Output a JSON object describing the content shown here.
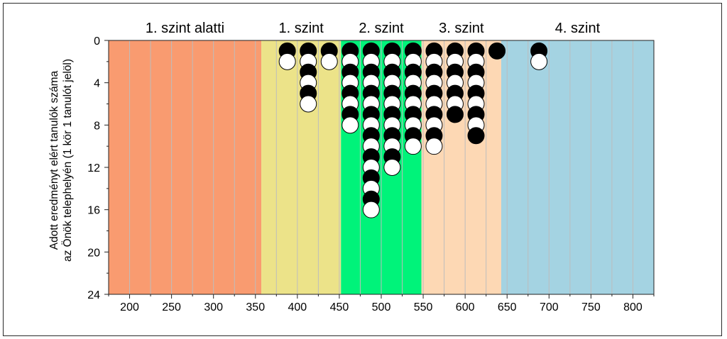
{
  "chart_data": {
    "type": "scatter",
    "title": "",
    "ylabel_lines": [
      "Adott eredményt elért tanulók száma",
      "az Önök telephelyén (1 kör 1 tanulót jelöl)"
    ],
    "xlabel": "",
    "xlim": [
      175,
      825
    ],
    "ylim": [
      0,
      24
    ],
    "y_inverted": true,
    "x_ticks": [
      "200",
      "250",
      "300",
      "350",
      "400",
      "450",
      "500",
      "550",
      "600",
      "650",
      "700",
      "750",
      "800"
    ],
    "y_ticks": [
      "0",
      "4",
      "8",
      "12",
      "16",
      "20",
      "24"
    ],
    "grid": "vertical",
    "bands": [
      {
        "label": "1. szint alatti",
        "from": 175,
        "to": 357,
        "color": "#f99b70"
      },
      {
        "label": "1. szint",
        "from": 357,
        "to": 452,
        "color": "#ece389"
      },
      {
        "label": "2. szint",
        "from": 452,
        "to": 548,
        "color": "#00f37a"
      },
      {
        "label": "3. szint",
        "from": 548,
        "to": 643,
        "color": "#fdd8b4"
      },
      {
        "label": "4. szint",
        "from": 643,
        "to": 825,
        "color": "#a4d3e2"
      }
    ],
    "columns": [
      {
        "x": 388,
        "count": 2
      },
      {
        "x": 413,
        "count": 6
      },
      {
        "x": 438,
        "count": 2
      },
      {
        "x": 463,
        "count": 8
      },
      {
        "x": 488,
        "count": 16
      },
      {
        "x": 513,
        "count": 12
      },
      {
        "x": 538,
        "count": 10
      },
      {
        "x": 563,
        "count": 10
      },
      {
        "x": 588,
        "count": 7
      },
      {
        "x": 613,
        "count": 9
      },
      {
        "x": 638,
        "count": 1
      },
      {
        "x": 688,
        "count": 2
      }
    ],
    "marker_colors": {
      "odd": "#000000",
      "even": "#ffffff"
    }
  }
}
